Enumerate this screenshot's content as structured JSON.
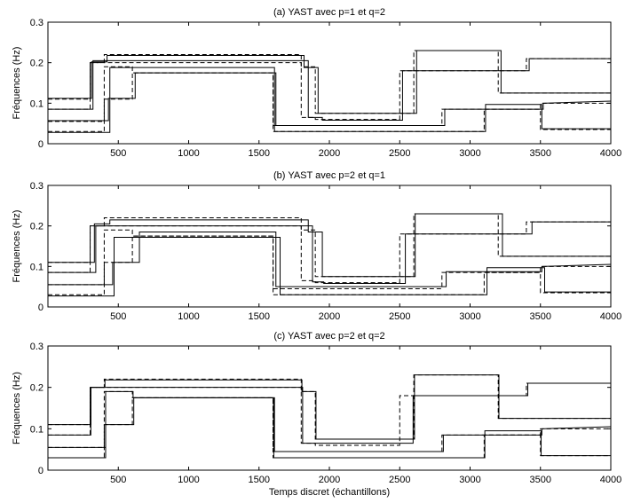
{
  "chart_data": [
    {
      "type": "line",
      "title": "(a) YAST avec p=1 et q=2",
      "ylabel": "Fréquences (Hz)",
      "xlabel": "",
      "xlim": [
        0,
        4000
      ],
      "ylim": [
        0,
        0.3
      ],
      "xticks": [
        500,
        1000,
        1500,
        2000,
        2500,
        3000,
        3500,
        4000
      ],
      "yticks": [
        0,
        0.1,
        0.2,
        0.3
      ],
      "yticklabels": [
        "0",
        "0.1",
        "0.2",
        "0.3"
      ],
      "series": [
        {
          "style": "dashed",
          "x": [
            0,
            300,
            300,
            400,
            400,
            1800,
            1800,
            1900,
            1900,
            2600,
            2600,
            3200,
            3200,
            4000
          ],
          "y": [
            0.11,
            0.11,
            0.2,
            0.2,
            0.22,
            0.22,
            0.19,
            0.19,
            0.075,
            0.075,
            0.23,
            0.23,
            0.125,
            0.125
          ]
        },
        {
          "style": "dashed",
          "x": [
            0,
            300,
            300,
            1800,
            1800,
            1900,
            1900,
            2500,
            2500,
            3200,
            3200,
            3400,
            3400,
            4000
          ],
          "y": [
            0.085,
            0.085,
            0.2,
            0.2,
            0.065,
            0.065,
            0.06,
            0.06,
            0.18,
            0.18,
            0.18,
            0.18,
            0.21,
            0.21
          ]
        },
        {
          "style": "dashed",
          "x": [
            0,
            400,
            400,
            600,
            600,
            1600,
            1600,
            1900,
            1900,
            2600,
            2600,
            2800,
            2800,
            3500,
            3500,
            4000
          ],
          "y": [
            0.055,
            0.055,
            0.11,
            0.11,
            0.175,
            0.175,
            0.045,
            0.045,
            0.045,
            0.045,
            0.045,
            0.045,
            0.085,
            0.085,
            0.1,
            0.1
          ]
        },
        {
          "style": "dashed",
          "x": [
            0,
            400,
            400,
            600,
            600,
            1600,
            1600,
            3100,
            3100,
            3500,
            3500,
            4000
          ],
          "y": [
            0.03,
            0.03,
            0.19,
            0.19,
            0.175,
            0.175,
            0.03,
            0.03,
            0.085,
            0.085,
            0.035,
            0.035
          ]
        },
        {
          "style": "solid",
          "x": [
            0,
            310,
            310,
            420,
            420,
            1820,
            1820,
            1920,
            1920,
            2620,
            2620,
            3220,
            3220,
            4000
          ],
          "y": [
            0.112,
            0.112,
            0.202,
            0.202,
            0.218,
            0.218,
            0.188,
            0.188,
            0.075,
            0.075,
            0.23,
            0.23,
            0.125,
            0.125
          ]
        },
        {
          "style": "solid",
          "x": [
            0,
            320,
            320,
            1850,
            1850,
            1950,
            1950,
            2520,
            2520,
            3420,
            3420,
            4000
          ],
          "y": [
            0.085,
            0.085,
            0.205,
            0.205,
            0.065,
            0.065,
            0.058,
            0.058,
            0.18,
            0.18,
            0.21,
            0.21
          ]
        },
        {
          "style": "solid",
          "x": [
            0,
            430,
            430,
            620,
            620,
            1620,
            1620,
            2820,
            2820,
            3520,
            3520,
            4000
          ],
          "y": [
            0.057,
            0.057,
            0.112,
            0.112,
            0.175,
            0.175,
            0.045,
            0.045,
            0.085,
            0.085,
            0.1,
            0.105
          ]
        },
        {
          "style": "solid",
          "x": [
            0,
            440,
            440,
            1610,
            1610,
            3110,
            3110,
            3510,
            3510,
            4000
          ],
          "y": [
            0.028,
            0.028,
            0.188,
            0.188,
            0.03,
            0.03,
            0.097,
            0.097,
            0.037,
            0.037
          ]
        }
      ]
    },
    {
      "type": "line",
      "title": "(b) YAST avec p=2 et q=1",
      "ylabel": "Fréquences (Hz)",
      "xlabel": "",
      "xlim": [
        0,
        4000
      ],
      "ylim": [
        0,
        0.3
      ],
      "xticks": [
        500,
        1000,
        1500,
        2000,
        2500,
        3000,
        3500,
        4000
      ],
      "yticks": [
        0,
        0.1,
        0.2,
        0.3
      ],
      "yticklabels": [
        "0",
        "0.1",
        "0.2",
        "0.3"
      ],
      "series": [
        {
          "style": "dashed",
          "x": [
            0,
            300,
            300,
            400,
            400,
            1800,
            1800,
            1900,
            1900,
            2600,
            2600,
            3200,
            3200,
            4000
          ],
          "y": [
            0.11,
            0.11,
            0.2,
            0.2,
            0.22,
            0.22,
            0.19,
            0.19,
            0.075,
            0.075,
            0.23,
            0.23,
            0.125,
            0.125
          ]
        },
        {
          "style": "dashed",
          "x": [
            0,
            300,
            300,
            1800,
            1800,
            1900,
            1900,
            2500,
            2500,
            3200,
            3200,
            3400,
            3400,
            4000
          ],
          "y": [
            0.085,
            0.085,
            0.2,
            0.2,
            0.065,
            0.065,
            0.06,
            0.06,
            0.18,
            0.18,
            0.18,
            0.18,
            0.21,
            0.21
          ]
        },
        {
          "style": "dashed",
          "x": [
            0,
            400,
            400,
            600,
            600,
            1600,
            1600,
            1900,
            1900,
            2600,
            2600,
            2800,
            2800,
            3500,
            3500,
            4000
          ],
          "y": [
            0.055,
            0.055,
            0.11,
            0.11,
            0.175,
            0.175,
            0.045,
            0.045,
            0.045,
            0.045,
            0.045,
            0.045,
            0.085,
            0.085,
            0.1,
            0.1
          ]
        },
        {
          "style": "dashed",
          "x": [
            0,
            400,
            400,
            600,
            600,
            1600,
            1600,
            3100,
            3100,
            3500,
            3500,
            4000
          ],
          "y": [
            0.03,
            0.03,
            0.19,
            0.19,
            0.175,
            0.175,
            0.03,
            0.03,
            0.085,
            0.085,
            0.035,
            0.035
          ]
        },
        {
          "style": "solid",
          "x": [
            0,
            330,
            330,
            440,
            440,
            1850,
            1850,
            1950,
            1950,
            2610,
            2610,
            3230,
            3230,
            4000
          ],
          "y": [
            0.11,
            0.11,
            0.205,
            0.205,
            0.215,
            0.215,
            0.185,
            0.185,
            0.075,
            0.075,
            0.23,
            0.23,
            0.125,
            0.125
          ]
        },
        {
          "style": "solid",
          "x": [
            0,
            340,
            340,
            1880,
            1880,
            1960,
            1960,
            2540,
            2540,
            3440,
            3440,
            4000
          ],
          "y": [
            0.085,
            0.085,
            0.2,
            0.2,
            0.062,
            0.062,
            0.058,
            0.058,
            0.18,
            0.18,
            0.21,
            0.21
          ]
        },
        {
          "style": "solid",
          "x": [
            0,
            460,
            460,
            650,
            650,
            1620,
            1620,
            2830,
            2830,
            3510,
            3510,
            4000
          ],
          "y": [
            0.055,
            0.055,
            0.11,
            0.11,
            0.185,
            0.185,
            0.05,
            0.05,
            0.087,
            0.087,
            0.1,
            0.105
          ]
        },
        {
          "style": "solid",
          "x": [
            0,
            470,
            470,
            1650,
            1650,
            3120,
            3120,
            3530,
            3530,
            4000
          ],
          "y": [
            0.027,
            0.027,
            0.172,
            0.172,
            0.03,
            0.03,
            0.097,
            0.097,
            0.037,
            0.037
          ]
        }
      ]
    },
    {
      "type": "line",
      "title": "(c) YAST avec p=2 et q=2",
      "ylabel": "Fréquences (Hz)",
      "xlabel": "Temps discret (échantillons)",
      "xlim": [
        0,
        4000
      ],
      "ylim": [
        0,
        0.3
      ],
      "xticks": [
        500,
        1000,
        1500,
        2000,
        2500,
        3000,
        3500,
        4000
      ],
      "yticks": [
        0,
        0.1,
        0.2,
        0.3
      ],
      "yticklabels": [
        "0",
        "0.1",
        "0.2",
        "0.3"
      ],
      "series": [
        {
          "style": "dashed",
          "x": [
            0,
            300,
            300,
            400,
            400,
            1800,
            1800,
            1900,
            1900,
            2600,
            2600,
            3200,
            3200,
            4000
          ],
          "y": [
            0.11,
            0.11,
            0.2,
            0.2,
            0.22,
            0.22,
            0.19,
            0.19,
            0.075,
            0.075,
            0.23,
            0.23,
            0.125,
            0.125
          ]
        },
        {
          "style": "dashed",
          "x": [
            0,
            300,
            300,
            1800,
            1800,
            1900,
            1900,
            2500,
            2500,
            3200,
            3200,
            3400,
            3400,
            4000
          ],
          "y": [
            0.085,
            0.085,
            0.2,
            0.2,
            0.065,
            0.065,
            0.06,
            0.06,
            0.18,
            0.18,
            0.18,
            0.18,
            0.21,
            0.21
          ]
        },
        {
          "style": "dashed",
          "x": [
            0,
            400,
            400,
            600,
            600,
            1600,
            1600,
            1900,
            1900,
            2600,
            2600,
            2800,
            2800,
            3500,
            3500,
            4000
          ],
          "y": [
            0.055,
            0.055,
            0.11,
            0.11,
            0.175,
            0.175,
            0.045,
            0.045,
            0.045,
            0.045,
            0.045,
            0.045,
            0.085,
            0.085,
            0.1,
            0.1
          ]
        },
        {
          "style": "dashed",
          "x": [
            0,
            400,
            400,
            600,
            600,
            1600,
            1600,
            3100,
            3100,
            3500,
            3500,
            4000
          ],
          "y": [
            0.03,
            0.03,
            0.19,
            0.19,
            0.175,
            0.175,
            0.03,
            0.03,
            0.085,
            0.085,
            0.035,
            0.035
          ]
        },
        {
          "style": "solid",
          "x": [
            0,
            305,
            305,
            405,
            405,
            1805,
            1805,
            1905,
            1905,
            2605,
            2605,
            3205,
            3205,
            4000
          ],
          "y": [
            0.11,
            0.11,
            0.2,
            0.2,
            0.218,
            0.218,
            0.19,
            0.19,
            0.075,
            0.075,
            0.23,
            0.23,
            0.125,
            0.125
          ]
        },
        {
          "style": "solid",
          "x": [
            0,
            305,
            305,
            1810,
            1810,
            1910,
            1910,
            2595,
            2595,
            3410,
            3410,
            4000
          ],
          "y": [
            0.085,
            0.085,
            0.2,
            0.2,
            0.065,
            0.065,
            0.065,
            0.065,
            0.18,
            0.18,
            0.21,
            0.21
          ]
        },
        {
          "style": "solid",
          "x": [
            0,
            410,
            410,
            610,
            610,
            1610,
            1610,
            2810,
            2810,
            3510,
            3510,
            4000
          ],
          "y": [
            0.055,
            0.055,
            0.11,
            0.11,
            0.175,
            0.175,
            0.045,
            0.045,
            0.085,
            0.085,
            0.1,
            0.105
          ]
        },
        {
          "style": "solid",
          "x": [
            0,
            410,
            410,
            605,
            605,
            1605,
            1605,
            3105,
            3105,
            3505,
            3505,
            4000
          ],
          "y": [
            0.03,
            0.03,
            0.19,
            0.19,
            0.175,
            0.175,
            0.03,
            0.03,
            0.095,
            0.095,
            0.035,
            0.035
          ]
        }
      ]
    }
  ]
}
